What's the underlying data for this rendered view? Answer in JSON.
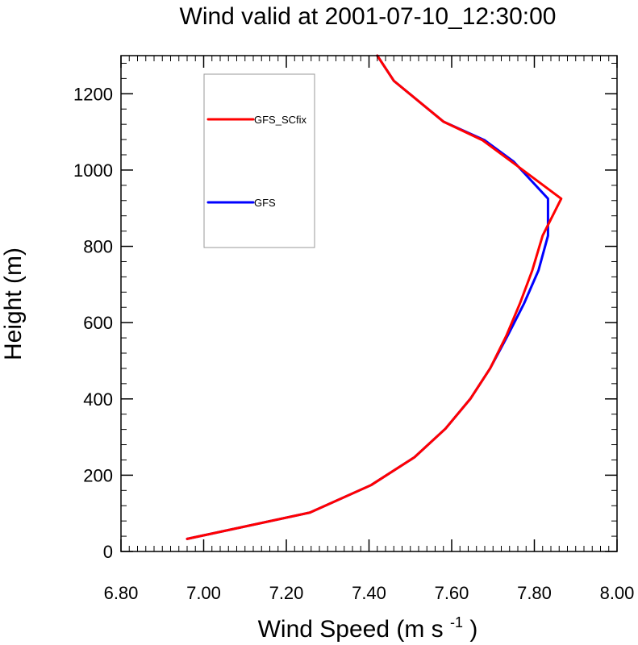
{
  "chart_data": {
    "type": "line",
    "title": "Wind valid at 2001-07-10_12:30:00",
    "xlabel": {
      "main": "Wind Speed (m s",
      "superscript": "-1",
      "suffix": ")"
    },
    "ylabel": "Height (m)",
    "xlim": [
      6.8,
      8.0
    ],
    "ylim": [
      0,
      1300
    ],
    "xticks": [
      6.8,
      7.0,
      7.2,
      7.4,
      7.6,
      7.8,
      8.0
    ],
    "xtick_labels": [
      "6.80",
      "7.00",
      "7.20",
      "7.40",
      "7.60",
      "7.80",
      "8.00"
    ],
    "yticks": [
      0,
      200,
      400,
      600,
      800,
      1000,
      1200
    ],
    "ytick_labels": [
      "0",
      "200",
      "400",
      "600",
      "800",
      "1000",
      "1200"
    ],
    "x_minor_step": 0.02,
    "y_minor_step": 40,
    "grid": false,
    "legend_placement": "top-left",
    "series": [
      {
        "name": "GFS",
        "color": "#0000ff",
        "points": [
          [
            6.96,
            33
          ],
          [
            7.257,
            102
          ],
          [
            7.405,
            174
          ],
          [
            7.51,
            247
          ],
          [
            7.585,
            322
          ],
          [
            7.645,
            400
          ],
          [
            7.693,
            480
          ],
          [
            7.735,
            565
          ],
          [
            7.775,
            650
          ],
          [
            7.81,
            737
          ],
          [
            7.833,
            828
          ],
          [
            7.833,
            925
          ],
          [
            7.75,
            1022
          ],
          [
            7.68,
            1078
          ],
          [
            7.58,
            1127
          ],
          [
            7.46,
            1234
          ],
          [
            7.42,
            1300
          ]
        ]
      },
      {
        "name": "GFS_SCfix",
        "color": "#ff0000",
        "points": [
          [
            6.96,
            33
          ],
          [
            7.257,
            102
          ],
          [
            7.405,
            174
          ],
          [
            7.51,
            247
          ],
          [
            7.585,
            322
          ],
          [
            7.645,
            400
          ],
          [
            7.693,
            480
          ],
          [
            7.732,
            565
          ],
          [
            7.765,
            650
          ],
          [
            7.795,
            737
          ],
          [
            7.82,
            828
          ],
          [
            7.865,
            925
          ],
          [
            7.745,
            1022
          ],
          [
            7.675,
            1078
          ],
          [
            7.58,
            1127
          ],
          [
            7.46,
            1234
          ],
          [
            7.42,
            1300
          ]
        ]
      }
    ],
    "legend_entries": [
      {
        "label": "GFS_SCfix",
        "color": "#ff0000"
      },
      {
        "label": "GFS",
        "color": "#0000ff"
      }
    ]
  }
}
